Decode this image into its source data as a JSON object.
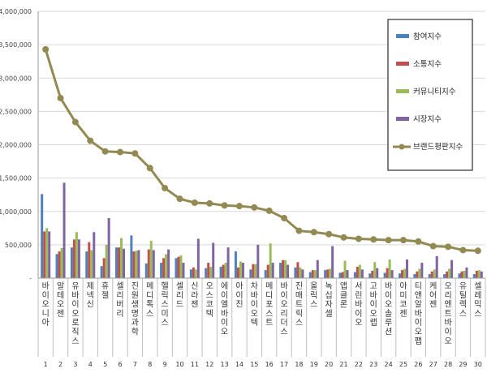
{
  "chart_data": {
    "type": "bar",
    "title": "",
    "xlabel": "",
    "ylabel": "",
    "ylim": [
      0,
      4000000
    ],
    "yticks": [
      0,
      500000,
      1000000,
      1500000,
      2000000,
      2500000,
      3000000,
      3500000,
      4000000
    ],
    "ytick_labels": [
      "-",
      "500,000",
      "1,000,000",
      "1,500,000",
      "2,000,000",
      "2,500,000",
      "3,000,000",
      "3,500,000",
      "4,000,000"
    ],
    "grid": true,
    "legend_position": "top-right",
    "categories": [
      "바이오니아",
      "알테오젠",
      "유바이오로직스",
      "제넥신",
      "휴젤",
      "셀리버리",
      "진원생명과학",
      "메디톡스",
      "헬릭스미스",
      "셀리드",
      "신라젠",
      "오스코텍",
      "에이엘바이오",
      "아이진",
      "차바이오텍",
      "메디포스트",
      "바이오리더스",
      "진매트릭스",
      "올릭스",
      "녹십자셀",
      "앱클론",
      "서린바이오",
      "고바이오랩",
      "바이오솔루션",
      "아미코젠",
      "티앤알바이오팹",
      "케어젠",
      "오리엔트바이오",
      "유틸렉스",
      "셀레믹스"
    ],
    "ranks": [
      "1",
      "2",
      "3",
      "4",
      "5",
      "6",
      "7",
      "8",
      "9",
      "10",
      "11",
      "12",
      "13",
      "14",
      "15",
      "16",
      "17",
      "18",
      "19",
      "20",
      "21",
      "22",
      "23",
      "24",
      "25",
      "26",
      "27",
      "28",
      "29",
      "30"
    ],
    "series": [
      {
        "name": "참여지수",
        "type": "bar",
        "color": "#4f81bd",
        "values": [
          1260000,
          360000,
          460000,
          400000,
          180000,
          460000,
          640000,
          220000,
          230000,
          300000,
          130000,
          150000,
          170000,
          400000,
          130000,
          120000,
          230000,
          160000,
          90000,
          120000,
          80000,
          90000,
          70000,
          80000,
          70000,
          60000,
          60000,
          60000,
          70000,
          60000
        ]
      },
      {
        "name": "소통지수",
        "type": "bar",
        "color": "#c0504d",
        "values": [
          700000,
          400000,
          580000,
          540000,
          300000,
          460000,
          400000,
          430000,
          300000,
          320000,
          160000,
          230000,
          200000,
          160000,
          210000,
          200000,
          270000,
          240000,
          120000,
          130000,
          90000,
          170000,
          110000,
          150000,
          120000,
          100000,
          100000,
          100000,
          100000,
          110000
        ]
      },
      {
        "name": "커뮤니티지수",
        "type": "bar",
        "color": "#9bbb59",
        "values": [
          750000,
          450000,
          690000,
          420000,
          500000,
          600000,
          410000,
          560000,
          360000,
          340000,
          130000,
          170000,
          230000,
          250000,
          210000,
          520000,
          270000,
          160000,
          120000,
          140000,
          260000,
          200000,
          240000,
          280000,
          140000,
          140000,
          130000,
          140000,
          110000,
          120000
        ]
      },
      {
        "name": "시장지수",
        "type": "bar",
        "color": "#8064a2",
        "values": [
          700000,
          1430000,
          580000,
          690000,
          900000,
          440000,
          420000,
          420000,
          430000,
          230000,
          590000,
          530000,
          460000,
          230000,
          500000,
          230000,
          200000,
          130000,
          270000,
          480000,
          120000,
          130000,
          150000,
          120000,
          280000,
          230000,
          330000,
          270000,
          160000,
          100000
        ]
      },
      {
        "name": "브랜드평판지수",
        "type": "line",
        "color": "#938953",
        "values": [
          3430000,
          2700000,
          2340000,
          2060000,
          1900000,
          1890000,
          1870000,
          1650000,
          1350000,
          1190000,
          1130000,
          1120000,
          1090000,
          1080000,
          1060000,
          1010000,
          900000,
          710000,
          690000,
          660000,
          610000,
          590000,
          580000,
          570000,
          570000,
          550000,
          480000,
          470000,
          420000,
          410000
        ]
      }
    ]
  }
}
